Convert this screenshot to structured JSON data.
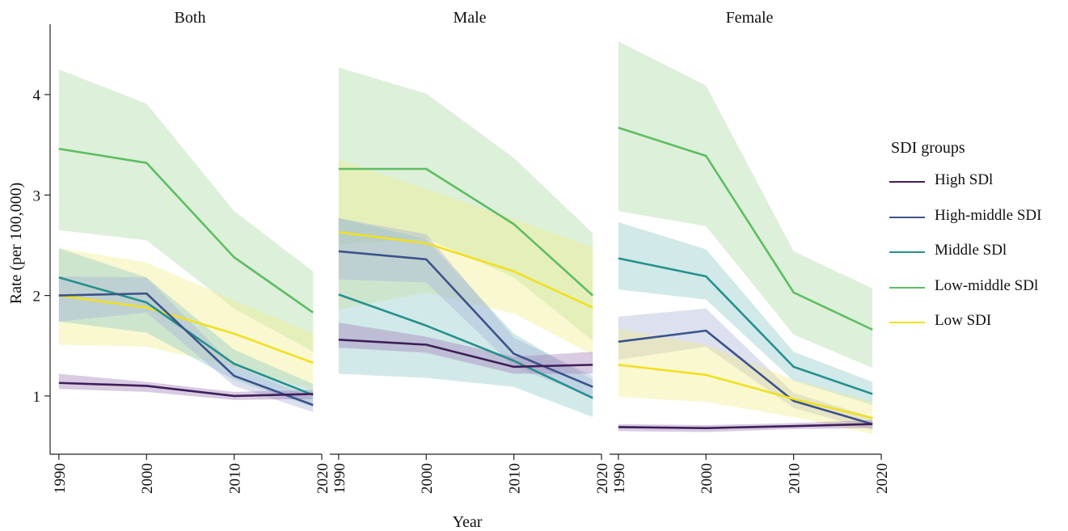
{
  "chart_data": {
    "type": "line",
    "xlabel": "Year",
    "ylabel": "Rate (per 100,000)",
    "x_ticks": [
      1990,
      2000,
      2010,
      2020
    ],
    "y_ticks": [
      1,
      2,
      3,
      4
    ],
    "xlim": [
      1989,
      2020
    ],
    "ylim": [
      0.42,
      4.7
    ],
    "legend": {
      "title": "SDI groups",
      "placement": "right"
    },
    "series_styles": [
      {
        "name": "High SDl",
        "color": "#3f1f5a",
        "band": "#a07cb6"
      },
      {
        "name": "High-middle SDI",
        "color": "#3b538a",
        "band": "#a7b2d6"
      },
      {
        "name": "Middle SDl",
        "color": "#25908c",
        "band": "#8cc9c9"
      },
      {
        "name": "Low-middle SDl",
        "color": "#5ebd64",
        "band": "#a9d9a1"
      },
      {
        "name": "Low SDI",
        "color": "#f0e020",
        "band": "#f3ed8a"
      }
    ],
    "panels": [
      {
        "title": "Both",
        "series": [
          {
            "name": "Low-middle SDl",
            "x": [
              1990,
              2000,
              2010,
              2019
            ],
            "values": [
              3.46,
              3.32,
              2.38,
              1.83
            ],
            "lower": [
              2.65,
              2.55,
              1.87,
              1.44
            ],
            "upper": [
              4.25,
              3.91,
              2.84,
              2.24
            ]
          },
          {
            "name": "Low SDI",
            "x": [
              1990,
              2000,
              2010,
              2019
            ],
            "values": [
              2.0,
              1.88,
              1.62,
              1.33
            ],
            "lower": [
              1.51,
              1.49,
              1.29,
              1.06
            ],
            "upper": [
              2.47,
              2.33,
              1.95,
              1.62
            ]
          },
          {
            "name": "Middle SDl",
            "x": [
              1990,
              2000,
              2010,
              2019
            ],
            "values": [
              2.18,
              1.93,
              1.32,
              1.01
            ],
            "lower": [
              1.74,
              1.63,
              1.16,
              0.89
            ],
            "upper": [
              2.47,
              2.18,
              1.46,
              1.12
            ]
          },
          {
            "name": "High-middle SDI",
            "x": [
              1990,
              2000,
              2010,
              2019
            ],
            "values": [
              2.0,
              2.02,
              1.2,
              0.91
            ],
            "lower": [
              1.74,
              1.83,
              1.1,
              0.84
            ],
            "upper": [
              2.19,
              2.18,
              1.3,
              0.98
            ]
          },
          {
            "name": "High SDl",
            "x": [
              1990,
              2000,
              2010,
              2019
            ],
            "values": [
              1.13,
              1.1,
              1.0,
              1.02
            ],
            "lower": [
              1.07,
              1.04,
              0.96,
              0.97
            ],
            "upper": [
              1.22,
              1.14,
              1.04,
              1.06
            ]
          }
        ]
      },
      {
        "title": "Male",
        "series": [
          {
            "name": "Low-middle SDl",
            "x": [
              1990,
              2000,
              2010,
              2019
            ],
            "values": [
              3.26,
              3.26,
              2.71,
              2.0
            ],
            "lower": [
              2.51,
              2.57,
              2.18,
              1.55
            ],
            "upper": [
              4.27,
              4.01,
              3.37,
              2.62
            ]
          },
          {
            "name": "Low SDI",
            "x": [
              1990,
              2000,
              2010,
              2019
            ],
            "values": [
              2.63,
              2.52,
              2.24,
              1.88
            ],
            "lower": [
              1.86,
              2.03,
              1.82,
              1.41
            ],
            "upper": [
              3.35,
              3.06,
              2.76,
              2.48
            ]
          },
          {
            "name": "Middle SDl",
            "x": [
              1990,
              2000,
              2010,
              2019
            ],
            "values": [
              2.01,
              1.7,
              1.35,
              0.98
            ],
            "lower": [
              1.22,
              1.18,
              1.09,
              0.79
            ],
            "upper": [
              2.77,
              2.56,
              1.62,
              1.16
            ]
          },
          {
            "name": "High-middle SDI",
            "x": [
              1990,
              2000,
              2010,
              2019
            ],
            "values": [
              2.44,
              2.36,
              1.42,
              1.09
            ],
            "lower": [
              2.16,
              2.13,
              1.29,
              0.99
            ],
            "upper": [
              2.77,
              2.61,
              1.58,
              1.2
            ]
          },
          {
            "name": "High SDl",
            "x": [
              1990,
              2000,
              2010,
              2019
            ],
            "values": [
              1.56,
              1.51,
              1.29,
              1.31
            ],
            "lower": [
              1.48,
              1.43,
              1.22,
              1.22
            ],
            "upper": [
              1.73,
              1.59,
              1.39,
              1.44
            ]
          }
        ]
      },
      {
        "title": "Female",
        "series": [
          {
            "name": "Low-middle SDl",
            "x": [
              1990,
              2000,
              2010,
              2019
            ],
            "values": [
              3.67,
              3.39,
              2.03,
              1.66
            ],
            "lower": [
              2.84,
              2.69,
              1.61,
              1.28
            ],
            "upper": [
              4.53,
              4.09,
              2.44,
              2.07
            ]
          },
          {
            "name": "Middle SDl",
            "x": [
              1990,
              2000,
              2010,
              2019
            ],
            "values": [
              2.37,
              2.19,
              1.29,
              1.02
            ],
            "lower": [
              2.06,
              1.96,
              1.15,
              0.91
            ],
            "upper": [
              2.73,
              2.46,
              1.44,
              1.14
            ]
          },
          {
            "name": "High-middle SDI",
            "x": [
              1990,
              2000,
              2010,
              2019
            ],
            "values": [
              1.54,
              1.65,
              0.95,
              0.72
            ],
            "lower": [
              1.36,
              1.49,
              0.88,
              0.66
            ],
            "upper": [
              1.79,
              1.87,
              1.03,
              0.79
            ]
          },
          {
            "name": "Low SDI",
            "x": [
              1990,
              2000,
              2010,
              2019
            ],
            "values": [
              1.31,
              1.21,
              0.97,
              0.78
            ],
            "lower": [
              0.99,
              0.94,
              0.79,
              0.62
            ],
            "upper": [
              1.67,
              1.51,
              1.16,
              0.94
            ]
          },
          {
            "name": "High SDl",
            "x": [
              1990,
              2000,
              2010,
              2019
            ],
            "values": [
              0.69,
              0.68,
              0.7,
              0.72
            ],
            "lower": [
              0.65,
              0.64,
              0.67,
              0.68
            ],
            "upper": [
              0.72,
              0.71,
              0.73,
              0.76
            ]
          }
        ]
      }
    ]
  }
}
